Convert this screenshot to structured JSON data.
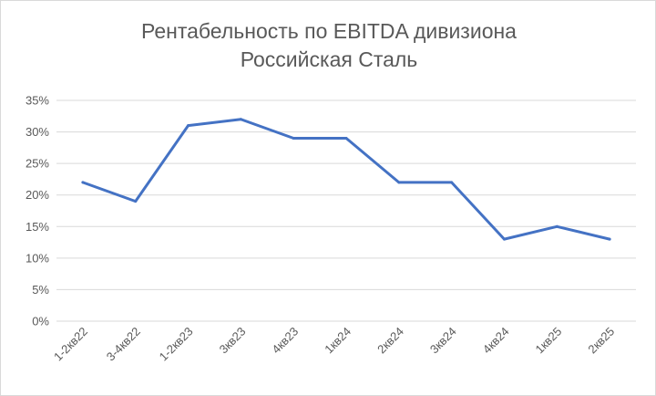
{
  "chart_data": {
    "type": "line",
    "title_line1": "Рентабельность по EBITDA дивизиона",
    "title_line2": "Российская Сталь",
    "categories": [
      "1-2кв22",
      "3-4кв22",
      "1-2кв23",
      "3кв23",
      "4кв23",
      "1кв24",
      "2кв24",
      "3кв24",
      "4кв24",
      "1кв25",
      "2кв25"
    ],
    "series": [
      {
        "values": [
          22,
          19,
          31,
          32,
          29,
          29,
          22,
          22,
          13,
          15,
          13
        ],
        "color": "#4472c4"
      }
    ],
    "ylim": [
      0,
      35
    ],
    "yticks": [
      "0%",
      "5%",
      "10%",
      "15%",
      "20%",
      "25%",
      "30%",
      "35%"
    ],
    "ytick_values": [
      0,
      5,
      10,
      15,
      20,
      25,
      30,
      35
    ],
    "grid": true,
    "legend": "none",
    "xlabel": "",
    "ylabel": ""
  }
}
